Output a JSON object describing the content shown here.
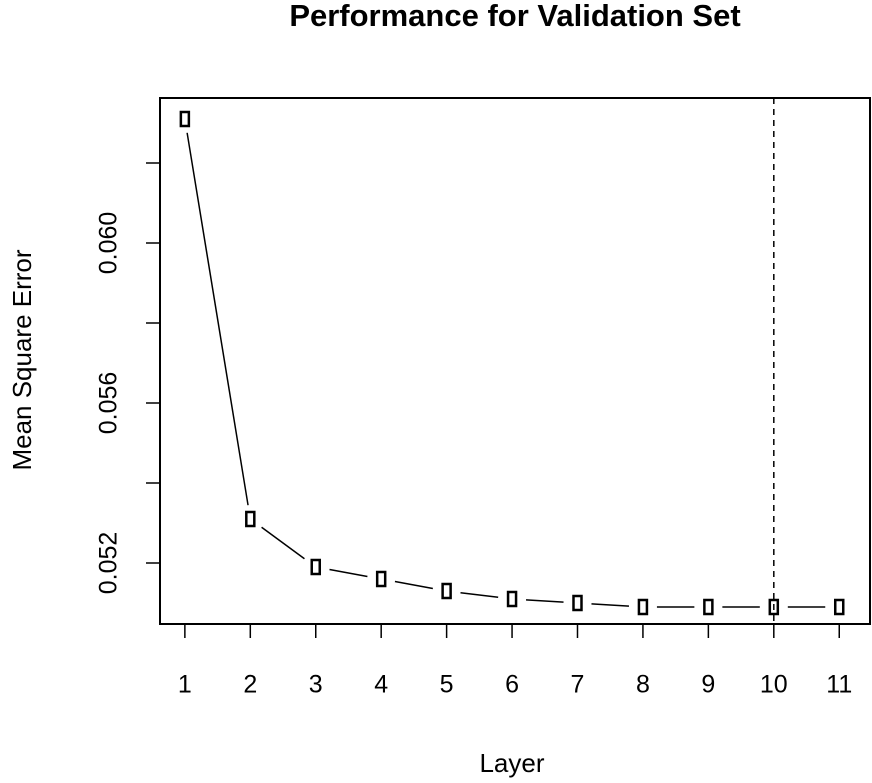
{
  "chart_data": {
    "type": "line",
    "title": "Performance for Validation Set",
    "x_label": "Layer",
    "y_label": "Mean Square Error",
    "x": [
      1,
      2,
      3,
      4,
      5,
      6,
      7,
      8,
      9,
      10,
      11
    ],
    "series": [
      {
        "color": "#000000",
        "values": [
          0.0631,
          0.0531,
          0.0519,
          0.0516,
          0.0513,
          0.0511,
          0.051,
          0.0509,
          0.0509,
          0.0509,
          0.0509
        ]
      }
    ],
    "xlim": [
      0.62,
      11.47
    ],
    "ylim": [
      0.050475,
      0.063625
    ],
    "xticks": [
      1,
      2,
      3,
      4,
      5,
      6,
      7,
      8,
      9,
      10,
      11
    ],
    "yticks": [
      0.052,
      {
        "value": 0.054,
        "label": null
      },
      {
        "value": 0.056,
        "label": "0.056"
      },
      {
        "value": 0.058,
        "label": null
      },
      {
        "value": 0.06,
        "label": "0.060"
      },
      {
        "value": 0.062,
        "label": null
      }
    ],
    "vline": 10
  }
}
